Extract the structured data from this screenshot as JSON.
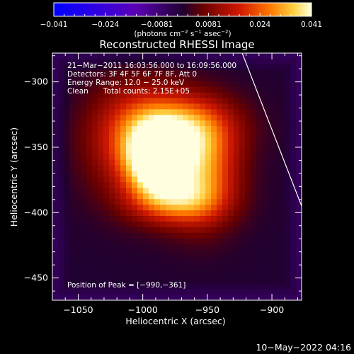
{
  "chart_data": {
    "type": "heatmap",
    "title": "Reconstructed RHESSI Image",
    "xlabel": "Heliocentric X (arcsec)",
    "ylabel": "Heliocentric Y (arcsec)",
    "xlim": [
      -1070,
      -877
    ],
    "ylim": [
      -467,
      -278
    ],
    "x_ticks": [
      {
        "value": -1050,
        "label": "−1050"
      },
      {
        "value": -1000,
        "label": "−1000"
      },
      {
        "value": -950,
        "label": "−950"
      },
      {
        "value": -900,
        "label": "−900"
      }
    ],
    "y_ticks": [
      {
        "value": -300,
        "label": "−300"
      },
      {
        "value": -350,
        "label": "−350"
      },
      {
        "value": -400,
        "label": "−400"
      },
      {
        "value": -450,
        "label": "−450"
      }
    ],
    "colorbar": {
      "range": [
        -0.041,
        0.041
      ],
      "tick_labels": [
        "−0.041",
        "−0.024",
        "−0.0081",
        "0.0081",
        "0.024",
        "0.041"
      ],
      "unit_prefix": "(photons cm",
      "unit_exp1": "−2",
      "unit_mid": " s",
      "unit_exp2": "−1",
      "unit_mid2": " asec",
      "unit_exp3": "−2",
      "unit_suffix": ")"
    },
    "annotations": [
      "21−Mar−2011 16:03:56.000 to 16:09:56.000",
      "Detectors: 3F 4F 5F 6F 7F 8F, Att 0",
      "Energy Range: 12.0 − 25.0 keV",
      "Clean",
      "Total counts: 2.15E+05"
    ],
    "peak_label": "Position of Peak = [−990,−361]",
    "peak": {
      "x": -990,
      "y": -361
    },
    "sources": [
      {
        "x": -990,
        "y": -361,
        "sx": 15,
        "sy": 18,
        "amp": 0.041
      },
      {
        "x": -968,
        "y": -334,
        "sx": 28,
        "sy": 17,
        "amp": 0.024
      },
      {
        "x": -955,
        "y": -370,
        "sx": 20,
        "sy": 26,
        "amp": 0.028
      },
      {
        "x": -1005,
        "y": -345,
        "sx": 26,
        "sy": 30,
        "amp": 0.022
      },
      {
        "x": -975,
        "y": -392,
        "sx": 24,
        "sy": 12,
        "amp": 0.018
      }
    ],
    "background": 0.0,
    "limb_line": {
      "x": [
        -923,
        -877
      ],
      "y": [
        -278,
        -395
      ]
    },
    "footer": "10−May−2022 04:16"
  }
}
